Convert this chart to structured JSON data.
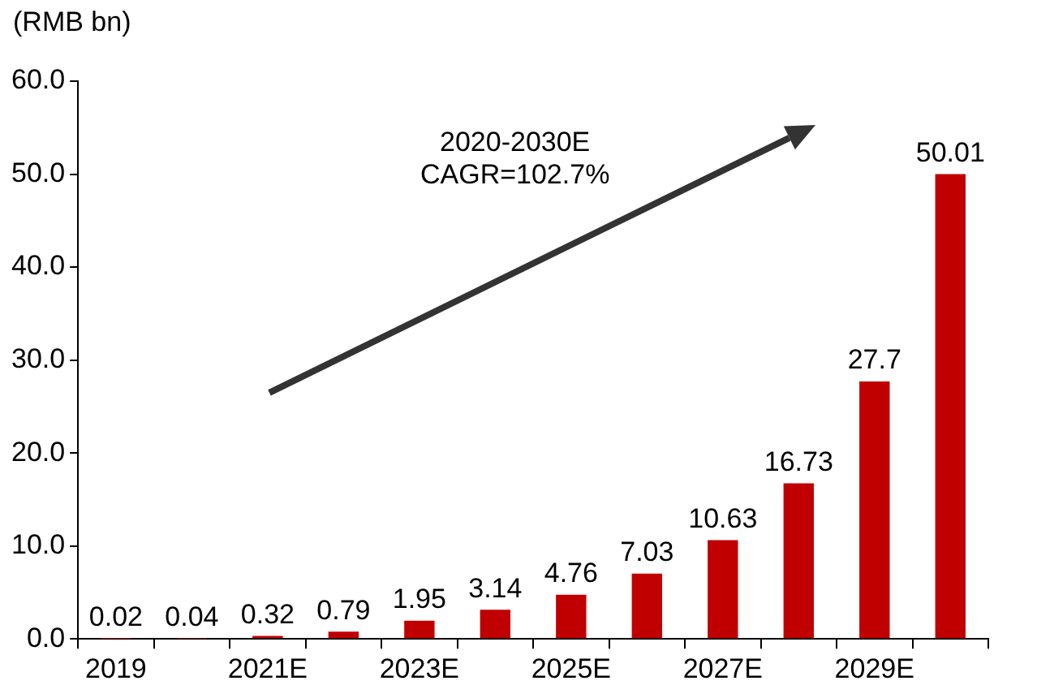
{
  "chart_data": {
    "type": "bar",
    "ylabel": "(RMB bn)",
    "categories": [
      "2019",
      null,
      "2021E",
      null,
      "2023E",
      null,
      "2025E",
      null,
      "2027E",
      null,
      "2029E",
      null
    ],
    "values": [
      0.02,
      0.04,
      0.32,
      0.79,
      1.95,
      3.14,
      4.76,
      7.03,
      10.63,
      16.73,
      27.7,
      50.01
    ],
    "color": "#c00000",
    "data_labels": true,
    "grid": false,
    "legend": false,
    "ylim": [
      0,
      60
    ],
    "yticks": [
      {
        "value": 0,
        "label": "0.0"
      },
      {
        "value": 10,
        "label": "10.0"
      },
      {
        "value": 20,
        "label": "20.0"
      },
      {
        "value": 30,
        "label": "30.0"
      },
      {
        "value": 40,
        "label": "40.0"
      },
      {
        "value": 50,
        "label": "50.0"
      },
      {
        "value": 60,
        "label": "60.0"
      }
    ],
    "annotations": [
      "2020-2030E",
      "CAGR=102.7%"
    ]
  }
}
